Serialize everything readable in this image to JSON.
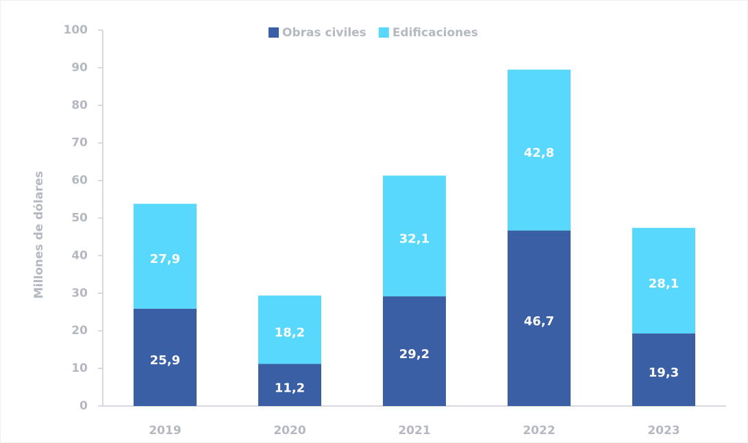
{
  "chart_data": {
    "type": "stacked_bar",
    "categories": [
      "2019",
      "2020",
      "2021",
      "2022",
      "2023"
    ],
    "series": [
      {
        "name": "Obras civiles",
        "color": "#3a5fa5",
        "values": [
          25.9,
          11.2,
          29.2,
          46.7,
          19.3
        ],
        "value_labels": [
          "25,9",
          "11,2",
          "29,2",
          "46,7",
          "19,3"
        ]
      },
      {
        "name": "Edificaciones",
        "color": "#57d8fc",
        "values": [
          27.9,
          18.2,
          32.1,
          42.8,
          28.1
        ],
        "value_labels": [
          "27,9",
          "18,2",
          "32,1",
          "42,8",
          "28,1"
        ]
      }
    ],
    "ylabel": "Millones de dólares",
    "ylim": [
      0,
      100
    ],
    "yticks": [
      0,
      10,
      20,
      30,
      40,
      50,
      60,
      70,
      80,
      90,
      100
    ],
    "grid": false,
    "legend": "top"
  }
}
